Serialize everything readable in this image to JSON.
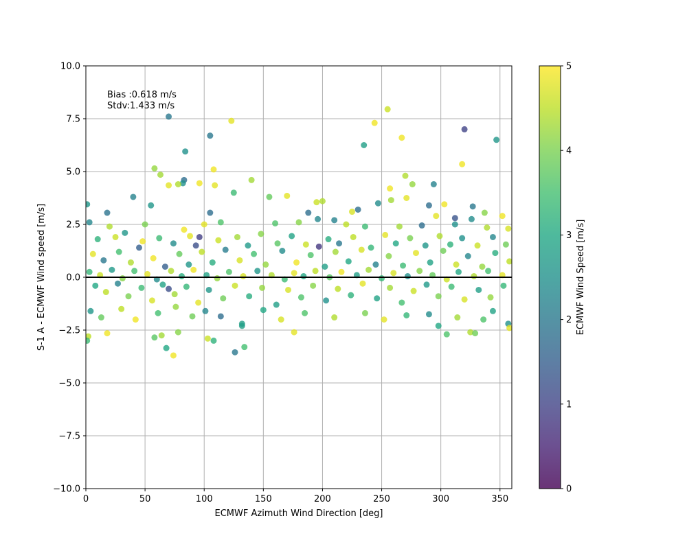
{
  "chart_data": {
    "type": "scatter",
    "xlabel": "ECMWF Azimuth Wind Direction [deg]",
    "ylabel": "S-1 A - ECMWF Wind speed [m/s]",
    "xlim": [
      0,
      360
    ],
    "ylim": [
      -10,
      10
    ],
    "xticks": [
      0,
      50,
      100,
      150,
      200,
      250,
      300,
      350
    ],
    "yticks": [
      -10.0,
      -7.5,
      -5.0,
      -2.5,
      0.0,
      2.5,
      5.0,
      7.5,
      10.0
    ],
    "xtick_labels": [
      "0",
      "50",
      "100",
      "150",
      "200",
      "250",
      "300",
      "350"
    ],
    "ytick_labels": [
      "−10.0",
      "−7.5",
      "−5.0",
      "−2.5",
      "0.0",
      "2.5",
      "5.0",
      "7.5",
      "10.0"
    ],
    "grid": true,
    "reference_line_y": 0,
    "colormap": "viridis",
    "color_variable": "ECMWF Wind Speed [m/s]",
    "annotations": [
      "Bias :0.618 m/s",
      "Stdv:1.433 m/s"
    ],
    "colorbar": {
      "label": "ECMWF Wind Speed [m/s]",
      "range": [
        0,
        5
      ],
      "ticks": [
        0,
        1,
        2,
        3,
        4,
        5
      ],
      "tick_labels": [
        "0",
        "1",
        "2",
        "3",
        "4",
        "5"
      ]
    },
    "points": [
      [
        70,
        7.6,
        2.0
      ],
      [
        105,
        6.7,
        2.0
      ],
      [
        123,
        7.4,
        4.8
      ],
      [
        255,
        7.95,
        4.6
      ],
      [
        244,
        7.3,
        4.9
      ],
      [
        267,
        6.6,
        4.9
      ],
      [
        320,
        7.0,
        1.0
      ],
      [
        347,
        6.5,
        2.6
      ],
      [
        235,
        6.25,
        2.8
      ],
      [
        84,
        5.95,
        2.5
      ],
      [
        108,
        5.1,
        4.9
      ],
      [
        58,
        5.15,
        4.2
      ],
      [
        318,
        5.35,
        4.9
      ],
      [
        83,
        4.6,
        1.8
      ],
      [
        82,
        4.45,
        2.5
      ],
      [
        63,
        4.85,
        4.3
      ],
      [
        70,
        4.35,
        4.8
      ],
      [
        78,
        4.4,
        4.4
      ],
      [
        96,
        4.45,
        4.9
      ],
      [
        109,
        4.35,
        4.8
      ],
      [
        140,
        4.6,
        4.3
      ],
      [
        257,
        4.2,
        4.9
      ],
      [
        270,
        4.8,
        4.4
      ],
      [
        276,
        4.4,
        4.2
      ],
      [
        294,
        4.4,
        2.2
      ],
      [
        40,
        3.8,
        2.2
      ],
      [
        125,
        4.0,
        3.4
      ],
      [
        155,
        3.8,
        3.8
      ],
      [
        170,
        3.85,
        4.8
      ],
      [
        195,
        3.55,
        4.6
      ],
      [
        200,
        3.6,
        4.4
      ],
      [
        271,
        3.75,
        4.8
      ],
      [
        1,
        3.45,
        2.6
      ],
      [
        55,
        3.4,
        2.6
      ],
      [
        18,
        3.05,
        1.9
      ],
      [
        105,
        3.05,
        1.8
      ],
      [
        188,
        3.05,
        1.8
      ],
      [
        210,
        2.7,
        2.2
      ],
      [
        230,
        3.2,
        1.8
      ],
      [
        225,
        3.1,
        4.7
      ],
      [
        247,
        3.5,
        2.4
      ],
      [
        258,
        3.65,
        4.3
      ],
      [
        290,
        3.4,
        1.8
      ],
      [
        296,
        2.9,
        4.8
      ],
      [
        303,
        3.45,
        4.9
      ],
      [
        327,
        3.35,
        2.0
      ],
      [
        337,
        3.05,
        4.1
      ],
      [
        352,
        2.9,
        4.9
      ],
      [
        3,
        2.6,
        2.3
      ],
      [
        20,
        2.4,
        4.4
      ],
      [
        50,
        2.5,
        4.0
      ],
      [
        83,
        2.25,
        4.9
      ],
      [
        100,
        2.5,
        4.8
      ],
      [
        114,
        2.6,
        3.6
      ],
      [
        160,
        2.55,
        3.6
      ],
      [
        180,
        2.6,
        4.1
      ],
      [
        196,
        2.75,
        2.3
      ],
      [
        220,
        2.5,
        4.5
      ],
      [
        236,
        2.4,
        3.4
      ],
      [
        265,
        2.4,
        4.3
      ],
      [
        284,
        2.45,
        1.8
      ],
      [
        312,
        2.5,
        2.5
      ],
      [
        326,
        2.75,
        2.4
      ],
      [
        339,
        2.35,
        4.4
      ],
      [
        357,
        2.3,
        4.7
      ],
      [
        10,
        1.8,
        3.2
      ],
      [
        25,
        1.9,
        4.6
      ],
      [
        33,
        2.1,
        2.6
      ],
      [
        48,
        1.7,
        4.9
      ],
      [
        62,
        1.85,
        3.4
      ],
      [
        74,
        1.6,
        2.4
      ],
      [
        88,
        1.95,
        4.8
      ],
      [
        93,
        1.5,
        1.2
      ],
      [
        112,
        1.75,
        4.6
      ],
      [
        128,
        1.9,
        4.3
      ],
      [
        137,
        1.5,
        2.7
      ],
      [
        148,
        2.05,
        4.1
      ],
      [
        162,
        1.6,
        3.7
      ],
      [
        174,
        1.95,
        2.9
      ],
      [
        186,
        1.55,
        4.6
      ],
      [
        197,
        1.45,
        0.8
      ],
      [
        205,
        1.8,
        3.1
      ],
      [
        214,
        1.6,
        2.0
      ],
      [
        226,
        1.9,
        4.5
      ],
      [
        241,
        1.4,
        3.3
      ],
      [
        253,
        2.0,
        4.8
      ],
      [
        262,
        1.6,
        3.0
      ],
      [
        274,
        1.85,
        4.0
      ],
      [
        287,
        1.5,
        2.6
      ],
      [
        299,
        1.95,
        4.4
      ],
      [
        308,
        1.55,
        3.2
      ],
      [
        318,
        1.85,
        2.5
      ],
      [
        331,
        1.5,
        4.6
      ],
      [
        344,
        1.9,
        2.3
      ],
      [
        355,
        1.55,
        3.9
      ],
      [
        6,
        1.1,
        4.8
      ],
      [
        15,
        0.8,
        2.0
      ],
      [
        28,
        1.2,
        3.5
      ],
      [
        38,
        0.7,
        4.4
      ],
      [
        45,
        1.4,
        1.5
      ],
      [
        57,
        0.9,
        4.9
      ],
      [
        67,
        0.5,
        1.5
      ],
      [
        79,
        1.1,
        3.8
      ],
      [
        87,
        0.6,
        2.6
      ],
      [
        98,
        1.2,
        4.5
      ],
      [
        107,
        0.7,
        3.1
      ],
      [
        118,
        1.3,
        2.1
      ],
      [
        130,
        0.8,
        4.7
      ],
      [
        142,
        1.1,
        3.5
      ],
      [
        152,
        0.6,
        4.2
      ],
      [
        166,
        1.25,
        2.4
      ],
      [
        178,
        0.7,
        4.9
      ],
      [
        190,
        1.05,
        3.6
      ],
      [
        202,
        0.5,
        2.8
      ],
      [
        211,
        1.2,
        4.3
      ],
      [
        222,
        0.75,
        3.0
      ],
      [
        233,
        1.3,
        4.7
      ],
      [
        245,
        0.6,
        2.2
      ],
      [
        256,
        1.0,
        4.1
      ],
      [
        268,
        0.55,
        3.4
      ],
      [
        279,
        1.15,
        4.8
      ],
      [
        291,
        0.7,
        2.9
      ],
      [
        302,
        1.25,
        3.9
      ],
      [
        313,
        0.6,
        4.6
      ],
      [
        323,
        1.0,
        2.3
      ],
      [
        335,
        0.5,
        4.2
      ],
      [
        346,
        1.15,
        3.1
      ],
      [
        358,
        0.75,
        4.5
      ],
      [
        3,
        0.25,
        3.3
      ],
      [
        12,
        0.1,
        4.6
      ],
      [
        22,
        0.35,
        2.7
      ],
      [
        31,
        -0.05,
        4.1
      ],
      [
        41,
        0.3,
        3.5
      ],
      [
        52,
        0.15,
        4.8
      ],
      [
        60,
        -0.1,
        2.4
      ],
      [
        72,
        0.3,
        4.4
      ],
      [
        81,
        0.05,
        3.1
      ],
      [
        91,
        0.35,
        4.9
      ],
      [
        102,
        0.1,
        2.9
      ],
      [
        111,
        -0.05,
        4.2
      ],
      [
        121,
        0.25,
        3.6
      ],
      [
        133,
        0.05,
        4.7
      ],
      [
        145,
        0.3,
        2.6
      ],
      [
        157,
        0.1,
        4.4
      ],
      [
        168,
        -0.1,
        3.4
      ],
      [
        176,
        0.2,
        4.8
      ],
      [
        184,
        0.05,
        3.0
      ],
      [
        194,
        0.3,
        4.5
      ],
      [
        206,
        0.0,
        3.7
      ],
      [
        216,
        0.25,
        4.9
      ],
      [
        229,
        0.1,
        2.8
      ],
      [
        239,
        0.35,
        4.3
      ],
      [
        250,
        -0.05,
        3.3
      ],
      [
        260,
        0.2,
        4.7
      ],
      [
        272,
        0.05,
        2.5
      ],
      [
        282,
        0.3,
        4.1
      ],
      [
        293,
        0.1,
        3.8
      ],
      [
        305,
        -0.1,
        4.6
      ],
      [
        315,
        0.25,
        3.0
      ],
      [
        328,
        0.05,
        4.4
      ],
      [
        340,
        0.3,
        3.5
      ],
      [
        352,
        0.1,
        4.8
      ],
      [
        8,
        -0.4,
        3.0
      ],
      [
        17,
        -0.7,
        4.5
      ],
      [
        27,
        -0.3,
        2.2
      ],
      [
        36,
        -0.9,
        4.0
      ],
      [
        47,
        -0.5,
        3.4
      ],
      [
        56,
        -1.1,
        4.7
      ],
      [
        65,
        -0.35,
        2.9
      ],
      [
        75,
        -0.8,
        4.3
      ],
      [
        85,
        -0.45,
        3.3
      ],
      [
        95,
        -1.2,
        4.8
      ],
      [
        104,
        -0.6,
        2.6
      ],
      [
        116,
        -1.0,
        3.9
      ],
      [
        126,
        -0.4,
        4.6
      ],
      [
        138,
        -0.9,
        3.1
      ],
      [
        149,
        -0.5,
        4.2
      ],
      [
        161,
        -1.3,
        2.8
      ],
      [
        171,
        -0.6,
        4.7
      ],
      [
        182,
        -0.95,
        3.6
      ],
      [
        192,
        -0.4,
        4.1
      ],
      [
        203,
        -1.1,
        2.5
      ],
      [
        213,
        -0.55,
        4.5
      ],
      [
        224,
        -0.85,
        3.2
      ],
      [
        234,
        -0.3,
        4.8
      ],
      [
        246,
        -1.0,
        2.9
      ],
      [
        257,
        -0.5,
        4.3
      ],
      [
        267,
        -1.2,
        3.5
      ],
      [
        277,
        -0.65,
        4.6
      ],
      [
        288,
        -0.35,
        2.7
      ],
      [
        298,
        -0.9,
        4.0
      ],
      [
        309,
        -0.45,
        3.4
      ],
      [
        320,
        -1.05,
        4.7
      ],
      [
        332,
        -0.6,
        2.8
      ],
      [
        342,
        -0.95,
        4.2
      ],
      [
        353,
        -0.4,
        3.3
      ],
      [
        4,
        -1.6,
        2.6
      ],
      [
        13,
        -1.9,
        3.8
      ],
      [
        30,
        -1.5,
        4.5
      ],
      [
        42,
        -2.0,
        4.9
      ],
      [
        61,
        -1.7,
        3.5
      ],
      [
        76,
        -1.4,
        4.2
      ],
      [
        90,
        -1.85,
        3.9
      ],
      [
        101,
        -1.6,
        2.3
      ],
      [
        114,
        -1.85,
        1.8
      ],
      [
        132,
        -2.2,
        2.8
      ],
      [
        150,
        -1.55,
        3.0
      ],
      [
        165,
        -2.0,
        4.7
      ],
      [
        185,
        -1.7,
        3.6
      ],
      [
        210,
        -1.9,
        4.4
      ],
      [
        236,
        -1.7,
        4.0
      ],
      [
        252,
        -2.0,
        4.8
      ],
      [
        271,
        -1.8,
        3.3
      ],
      [
        290,
        -1.75,
        2.4
      ],
      [
        314,
        -1.9,
        4.3
      ],
      [
        336,
        -2.0,
        3.6
      ],
      [
        344,
        -1.6,
        2.9
      ],
      [
        2,
        -2.8,
        4.5
      ],
      [
        1,
        -3.0,
        3.4
      ],
      [
        18,
        -2.65,
        4.9
      ],
      [
        58,
        -2.85,
        3.7
      ],
      [
        64,
        -2.75,
        4.3
      ],
      [
        78,
        -2.6,
        4.1
      ],
      [
        103,
        -2.9,
        4.6
      ],
      [
        108,
        -3.0,
        3.2
      ],
      [
        132,
        -2.3,
        2.8
      ],
      [
        134,
        -3.3,
        3.5
      ],
      [
        68,
        -3.35,
        3.0
      ],
      [
        74,
        -3.7,
        4.9
      ],
      [
        126,
        -3.55,
        2.0
      ],
      [
        176,
        -2.6,
        4.8
      ],
      [
        305,
        -2.7,
        3.6
      ],
      [
        325,
        -2.6,
        4.4
      ],
      [
        329,
        -2.65,
        3.9
      ],
      [
        357,
        -2.2,
        2.5
      ],
      [
        358,
        -2.4,
        4.8
      ],
      [
        298,
        -2.3,
        3.0
      ],
      [
        70,
        -0.55,
        1.2
      ],
      [
        312,
        2.8,
        1.3
      ],
      [
        96,
        1.9,
        0.9
      ]
    ]
  }
}
